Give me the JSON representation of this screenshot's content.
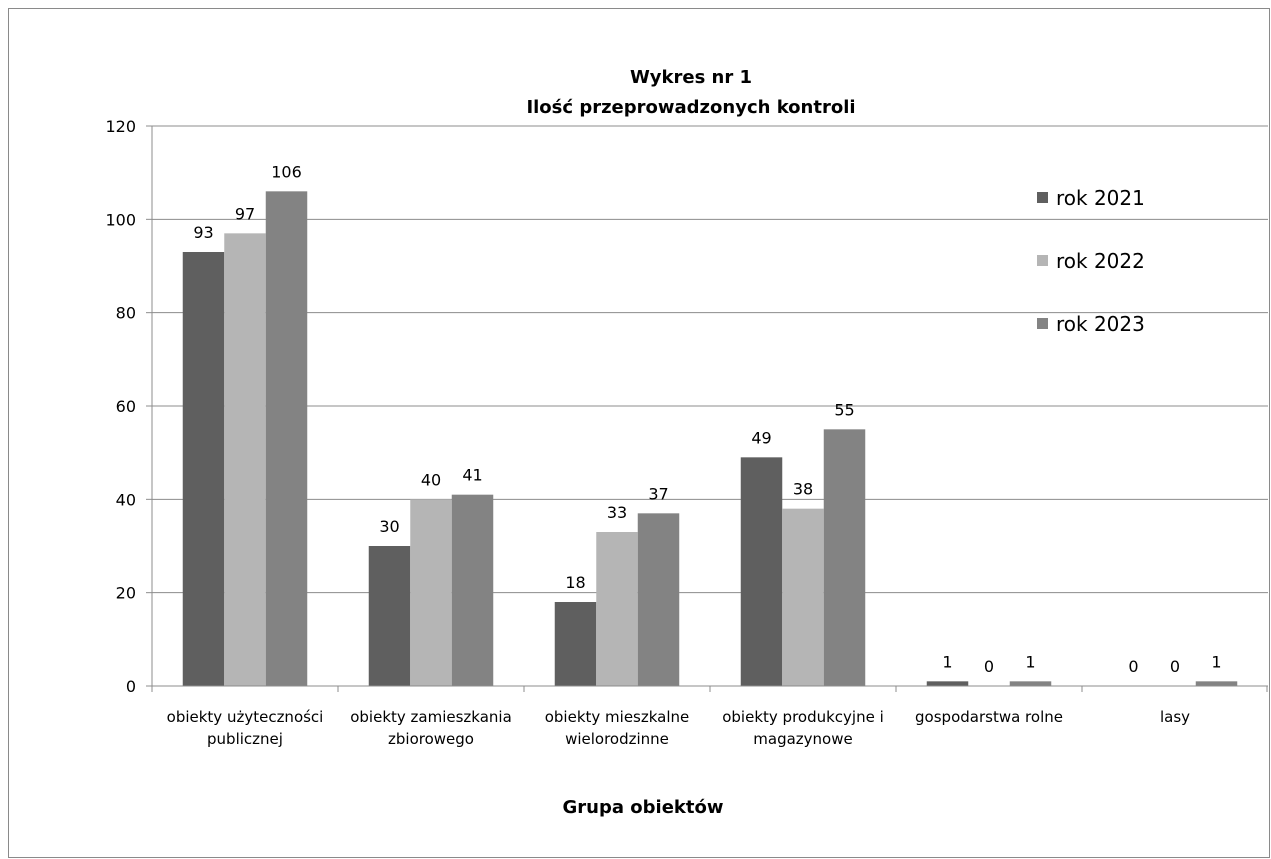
{
  "chart_data": {
    "type": "bar",
    "title": "Wykres nr 1",
    "subtitle": "Ilość przeprowadzonych kontroli",
    "xlabel": "Grupa obiektów",
    "ylabel": "",
    "ylim": [
      0,
      120
    ],
    "yticks": [
      0,
      20,
      40,
      60,
      80,
      100,
      120
    ],
    "grid": true,
    "legend_position": "top-right",
    "categories": [
      [
        "obiekty użyteczności",
        "publicznej"
      ],
      [
        "obiekty zamieszkania",
        "zbiorowego"
      ],
      [
        "obiekty mieszkalne",
        "wielorodzinne"
      ],
      [
        "obiekty produkcyjne i",
        "magazynowe"
      ],
      [
        "gospodarstwa rolne"
      ],
      [
        "lasy"
      ]
    ],
    "series": [
      {
        "name": "rok 2021",
        "color": "#5f5f5f",
        "values": [
          93,
          30,
          18,
          49,
          1,
          0
        ]
      },
      {
        "name": "rok 2022",
        "color": "#b5b5b5",
        "values": [
          97,
          40,
          33,
          38,
          0,
          0
        ]
      },
      {
        "name": "rok 2023",
        "color": "#838383",
        "values": [
          106,
          41,
          37,
          55,
          1,
          1
        ]
      }
    ]
  }
}
